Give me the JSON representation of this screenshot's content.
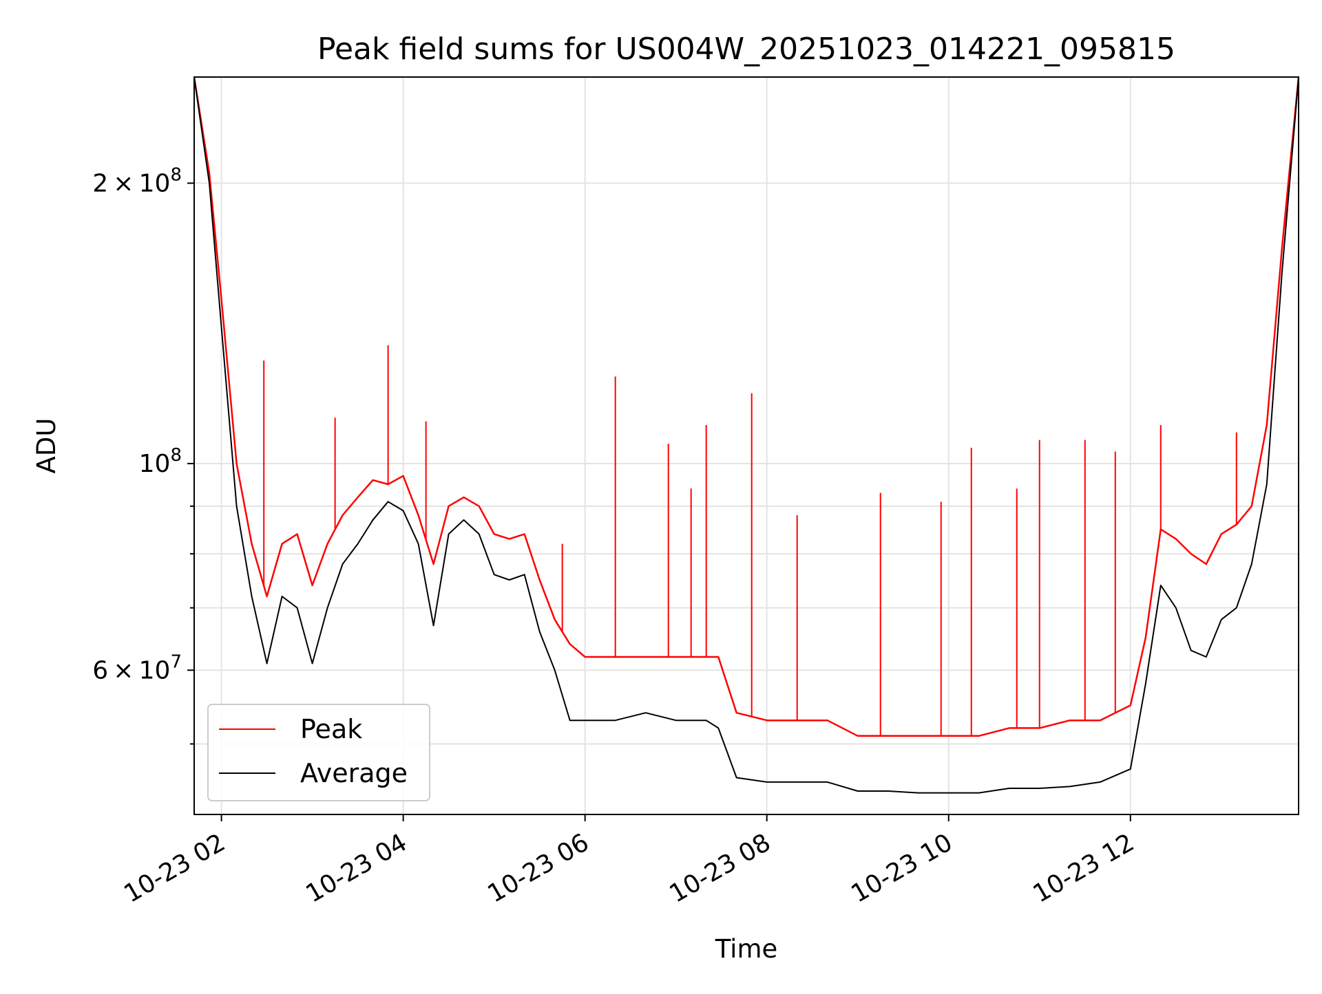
{
  "chart_data": {
    "type": "line",
    "title": "Peak field sums for US004W_20251023_014221_095815",
    "xlabel": "Time",
    "ylabel": "ADU",
    "yscale": "log",
    "ylim": [
      42000000,
      260000000
    ],
    "xlim": [
      "2025-10-23 01:42",
      "2025-10-23 13:51"
    ],
    "grid": true,
    "legend": {
      "position": "lower-left",
      "entries": [
        "Peak",
        "Average"
      ]
    },
    "x_ticks": [
      "10-23 02",
      "10-23 04",
      "10-23 06",
      "10-23 08",
      "10-23 10",
      "10-23 12"
    ],
    "x_tick_values": [
      "2025-10-23 02:00",
      "2025-10-23 04:00",
      "2025-10-23 06:00",
      "2025-10-23 08:00",
      "2025-10-23 10:00",
      "2025-10-23 12:00"
    ],
    "y_major_ticks": [
      {
        "value": 60000000,
        "mantissa": "6",
        "exp": "7",
        "prefix": "6 × 10"
      },
      {
        "value": 100000000,
        "mantissa": "",
        "exp": "8",
        "prefix": "10"
      },
      {
        "value": 200000000,
        "mantissa": "2",
        "exp": "8",
        "prefix": "2 × 10"
      }
    ],
    "y_minor_ticks": [
      50000000,
      70000000,
      80000000,
      90000000
    ],
    "series": [
      {
        "name": "Peak",
        "color": "#ff0000",
        "x": [
          "2025-10-23 01:42",
          "2025-10-23 01:52",
          "2025-10-23 02:00",
          "2025-10-23 02:10",
          "2025-10-23 02:20",
          "2025-10-23 02:30",
          "2025-10-23 02:40",
          "2025-10-23 02:50",
          "2025-10-23 03:00",
          "2025-10-23 03:10",
          "2025-10-23 03:20",
          "2025-10-23 03:30",
          "2025-10-23 03:40",
          "2025-10-23 03:50",
          "2025-10-23 04:00",
          "2025-10-23 04:10",
          "2025-10-23 04:20",
          "2025-10-23 04:30",
          "2025-10-23 04:40",
          "2025-10-23 04:50",
          "2025-10-23 05:00",
          "2025-10-23 05:10",
          "2025-10-23 05:20",
          "2025-10-23 05:30",
          "2025-10-23 05:40",
          "2025-10-23 05:50",
          "2025-10-23 06:00",
          "2025-10-23 06:20",
          "2025-10-23 06:40",
          "2025-10-23 07:00",
          "2025-10-23 07:20",
          "2025-10-23 07:28",
          "2025-10-23 07:40",
          "2025-10-23 08:00",
          "2025-10-23 08:20",
          "2025-10-23 08:40",
          "2025-10-23 09:00",
          "2025-10-23 09:20",
          "2025-10-23 09:40",
          "2025-10-23 10:00",
          "2025-10-23 10:20",
          "2025-10-23 10:40",
          "2025-10-23 11:00",
          "2025-10-23 11:20",
          "2025-10-23 11:40",
          "2025-10-23 12:00",
          "2025-10-23 12:10",
          "2025-10-23 12:20",
          "2025-10-23 12:30",
          "2025-10-23 12:40",
          "2025-10-23 12:50",
          "2025-10-23 13:00",
          "2025-10-23 13:10",
          "2025-10-23 13:20",
          "2025-10-23 13:30",
          "2025-10-23 13:40",
          "2025-10-23 13:51"
        ],
        "y": [
          260000000,
          205000000,
          150000000,
          100000000,
          82000000,
          72000000,
          82000000,
          84000000,
          74000000,
          82000000,
          88000000,
          92000000,
          96000000,
          95000000,
          97000000,
          88000000,
          78000000,
          90000000,
          92000000,
          90000000,
          84000000,
          83000000,
          84000000,
          75000000,
          68000000,
          64000000,
          62000000,
          62000000,
          62000000,
          62000000,
          62000000,
          62000000,
          54000000,
          53000000,
          53000000,
          53000000,
          51000000,
          51000000,
          51000000,
          51000000,
          51000000,
          52000000,
          52000000,
          53000000,
          53000000,
          55000000,
          65000000,
          85000000,
          83000000,
          80000000,
          78000000,
          84000000,
          86000000,
          90000000,
          110000000,
          170000000,
          260000000
        ],
        "spikes": [
          {
            "x": "2025-10-23 02:28",
            "y": 129000000
          },
          {
            "x": "2025-10-23 03:15",
            "y": 112000000
          },
          {
            "x": "2025-10-23 03:50",
            "y": 134000000
          },
          {
            "x": "2025-10-23 04:15",
            "y": 111000000
          },
          {
            "x": "2025-10-23 05:45",
            "y": 82000000
          },
          {
            "x": "2025-10-23 06:20",
            "y": 124000000
          },
          {
            "x": "2025-10-23 06:55",
            "y": 105000000
          },
          {
            "x": "2025-10-23 07:10",
            "y": 94000000
          },
          {
            "x": "2025-10-23 07:20",
            "y": 110000000
          },
          {
            "x": "2025-10-23 07:50",
            "y": 119000000
          },
          {
            "x": "2025-10-23 08:20",
            "y": 88000000
          },
          {
            "x": "2025-10-23 09:15",
            "y": 93000000
          },
          {
            "x": "2025-10-23 09:55",
            "y": 91000000
          },
          {
            "x": "2025-10-23 10:15",
            "y": 104000000
          },
          {
            "x": "2025-10-23 10:45",
            "y": 94000000
          },
          {
            "x": "2025-10-23 11:00",
            "y": 106000000
          },
          {
            "x": "2025-10-23 11:30",
            "y": 106000000
          },
          {
            "x": "2025-10-23 11:50",
            "y": 103000000
          },
          {
            "x": "2025-10-23 12:20",
            "y": 110000000
          },
          {
            "x": "2025-10-23 13:10",
            "y": 108000000
          }
        ]
      },
      {
        "name": "Average",
        "color": "#000000",
        "x": [
          "2025-10-23 01:42",
          "2025-10-23 01:52",
          "2025-10-23 02:00",
          "2025-10-23 02:10",
          "2025-10-23 02:20",
          "2025-10-23 02:30",
          "2025-10-23 02:40",
          "2025-10-23 02:50",
          "2025-10-23 03:00",
          "2025-10-23 03:10",
          "2025-10-23 03:20",
          "2025-10-23 03:30",
          "2025-10-23 03:40",
          "2025-10-23 03:50",
          "2025-10-23 04:00",
          "2025-10-23 04:10",
          "2025-10-23 04:20",
          "2025-10-23 04:30",
          "2025-10-23 04:40",
          "2025-10-23 04:50",
          "2025-10-23 05:00",
          "2025-10-23 05:10",
          "2025-10-23 05:20",
          "2025-10-23 05:30",
          "2025-10-23 05:40",
          "2025-10-23 05:50",
          "2025-10-23 06:00",
          "2025-10-23 06:20",
          "2025-10-23 06:40",
          "2025-10-23 07:00",
          "2025-10-23 07:20",
          "2025-10-23 07:28",
          "2025-10-23 07:40",
          "2025-10-23 08:00",
          "2025-10-23 08:20",
          "2025-10-23 08:40",
          "2025-10-23 09:00",
          "2025-10-23 09:20",
          "2025-10-23 09:40",
          "2025-10-23 10:00",
          "2025-10-23 10:20",
          "2025-10-23 10:40",
          "2025-10-23 11:00",
          "2025-10-23 11:20",
          "2025-10-23 11:40",
          "2025-10-23 12:00",
          "2025-10-23 12:10",
          "2025-10-23 12:20",
          "2025-10-23 12:30",
          "2025-10-23 12:40",
          "2025-10-23 12:50",
          "2025-10-23 13:00",
          "2025-10-23 13:10",
          "2025-10-23 13:20",
          "2025-10-23 13:30",
          "2025-10-23 13:40",
          "2025-10-23 13:51"
        ],
        "y": [
          260000000,
          200000000,
          140000000,
          90000000,
          72000000,
          61000000,
          72000000,
          70000000,
          61000000,
          70000000,
          78000000,
          82000000,
          87000000,
          91000000,
          89000000,
          82000000,
          67000000,
          84000000,
          87000000,
          84000000,
          76000000,
          75000000,
          76000000,
          66000000,
          60000000,
          53000000,
          53000000,
          53000000,
          54000000,
          53000000,
          53000000,
          52000000,
          46000000,
          45500000,
          45500000,
          45500000,
          44500000,
          44500000,
          44300000,
          44300000,
          44300000,
          44800000,
          44800000,
          45000000,
          45500000,
          47000000,
          58000000,
          74000000,
          70000000,
          63000000,
          62000000,
          68000000,
          70000000,
          78000000,
          95000000,
          160000000,
          260000000
        ]
      }
    ]
  }
}
